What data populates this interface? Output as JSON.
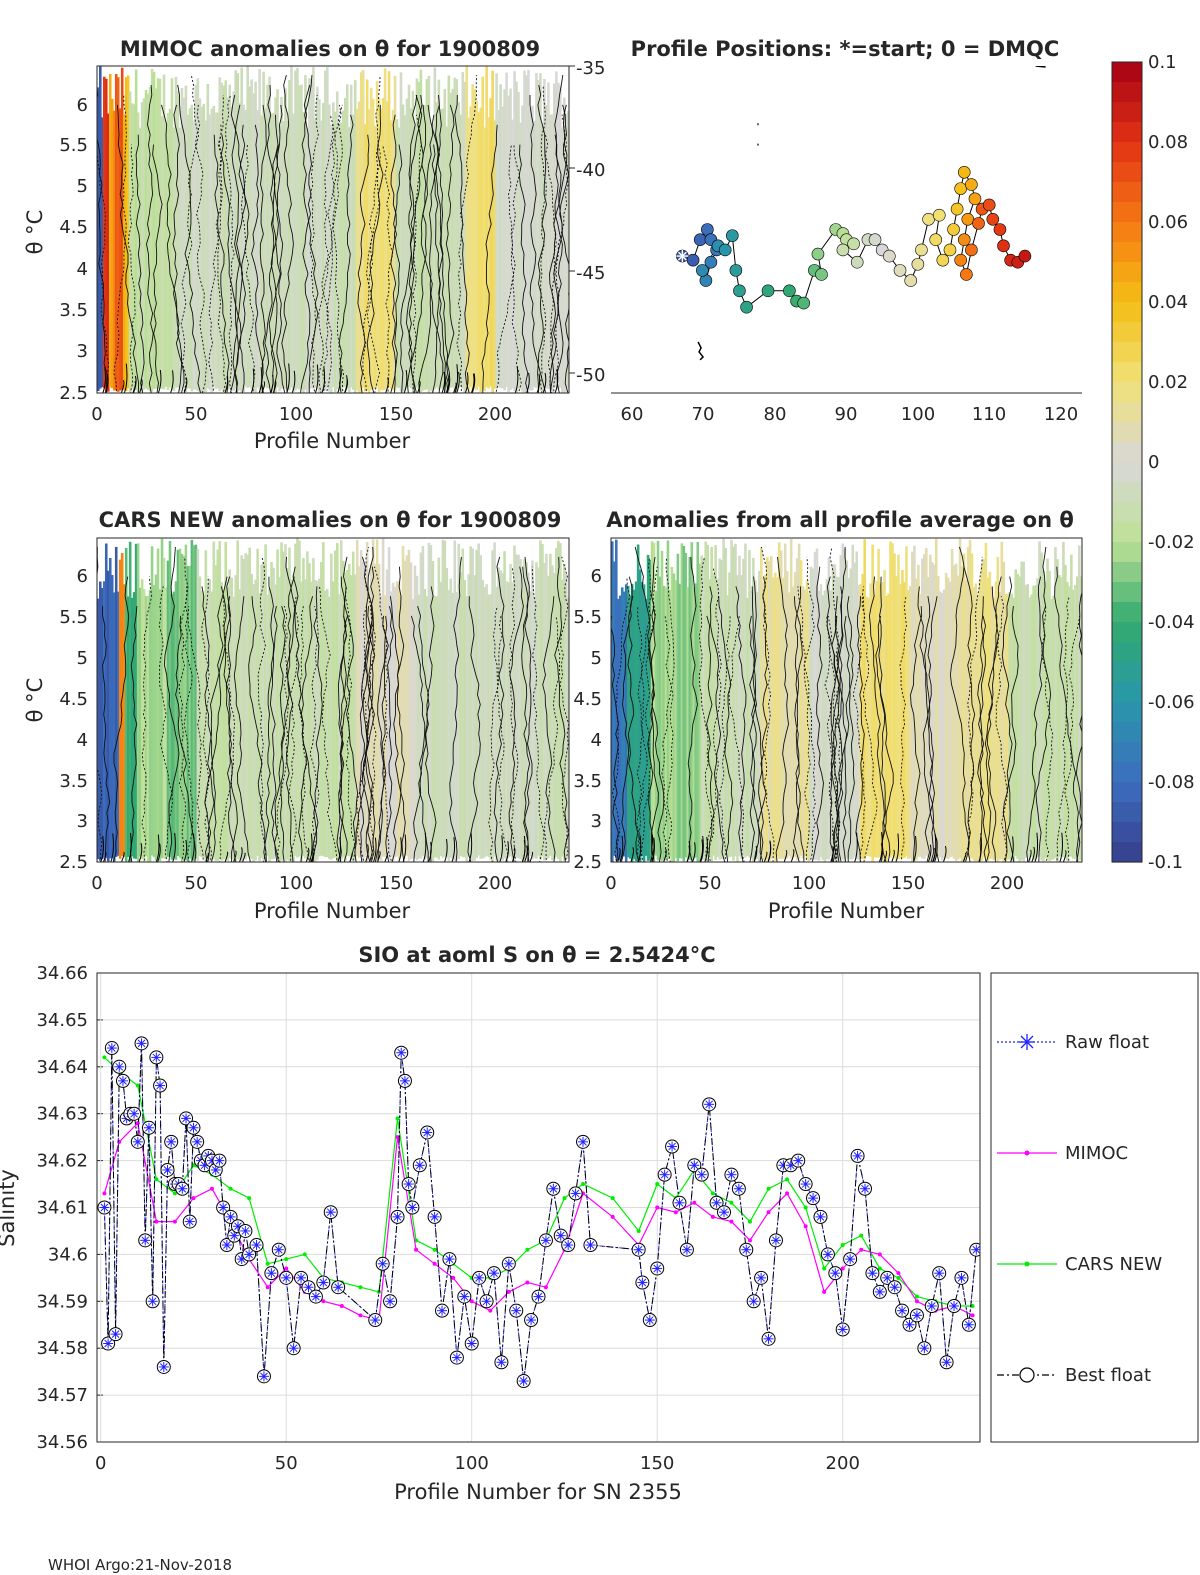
{
  "figure": {
    "footer": "WHOI Argo:21-Nov-2018"
  },
  "panels": {
    "mimoc": {
      "title": "MIMOC anomalies on θ  for 1900809",
      "xlabel": "Profile Number",
      "ylabel": "θ °C",
      "xticks": [
        "0",
        "50",
        "100",
        "150",
        "200"
      ],
      "yticks": [
        "2.5",
        "3",
        "3.5",
        "4",
        "4.5",
        "5",
        "5.5",
        "6"
      ]
    },
    "positions": {
      "title": "Profile Positions: *=start; 0 = DMQC",
      "xticks": [
        "60",
        "70",
        "80",
        "90",
        "100",
        "110",
        "120"
      ],
      "yticks": [
        "-35",
        "-40",
        "-45",
        "-50"
      ]
    },
    "cars": {
      "title": "CARS NEW anomalies on θ for 1900809",
      "xlabel": "Profile Number",
      "ylabel": "θ °C",
      "xticks": [
        "0",
        "50",
        "100",
        "150",
        "200"
      ],
      "yticks": [
        "2.5",
        "3",
        "3.5",
        "4",
        "4.5",
        "5",
        "5.5",
        "6"
      ]
    },
    "allavg": {
      "title": "Anomalies from all profile average on θ",
      "xlabel": "Profile Number",
      "xticks": [
        "0",
        "50",
        "100",
        "150",
        "200"
      ],
      "yticks": [
        "2.5",
        "3",
        "3.5",
        "4",
        "4.5",
        "5",
        "5.5",
        "6"
      ]
    },
    "colorbar": {
      "ticks": [
        "0.1",
        "0.08",
        "0.06",
        "0.04",
        "0.02",
        "0",
        "-0.02",
        "-0.04",
        "-0.06",
        "-0.08",
        "-0.1"
      ]
    }
  },
  "chart_data": [
    {
      "type": "heatmap",
      "id": "mimoc",
      "title": "MIMOC anomalies on θ  for 1900809",
      "xlabel": "Profile Number",
      "ylabel": "θ °C",
      "xlim": [
        0,
        237
      ],
      "ylim": [
        2.5,
        6.45
      ],
      "clim": [
        -0.1,
        0.1
      ],
      "anomaly_bands": [
        {
          "x": [
            0,
            3
          ],
          "value": -0.09
        },
        {
          "x": [
            3,
            6
          ],
          "value": 0.08
        },
        {
          "x": [
            6,
            9
          ],
          "value": 0.05
        },
        {
          "x": [
            9,
            13
          ],
          "value": 0.07
        },
        {
          "x": [
            13,
            16
          ],
          "value": 0.04
        },
        {
          "x": [
            16,
            40
          ],
          "value": -0.015
        },
        {
          "x": [
            40,
            130
          ],
          "value": -0.008
        },
        {
          "x": [
            130,
            150
          ],
          "value": 0.018
        },
        {
          "x": [
            150,
            185
          ],
          "value": -0.01
        },
        {
          "x": [
            185,
            200
          ],
          "value": 0.02
        },
        {
          "x": [
            200,
            237
          ],
          "value": -0.004
        }
      ]
    },
    {
      "type": "scatter",
      "id": "positions",
      "title": "Profile Positions: *=start; 0 = DMQC",
      "xlim": [
        57,
        123
      ],
      "ylim": [
        -51,
        -35
      ],
      "start": [
        67,
        -44.3
      ],
      "colorbar_ticks": [
        "0.1",
        "0.08",
        "0.06",
        "0.04",
        "0.02",
        "0",
        "-0.02",
        "-0.04",
        "-0.06",
        "-0.08",
        "-0.1"
      ],
      "track": [
        [
          67,
          -44.3
        ],
        [
          68.5,
          -44.5
        ],
        [
          69.5,
          -43.5
        ],
        [
          70.5,
          -43.0
        ],
        [
          71,
          -43.5
        ],
        [
          71.8,
          -44.0
        ],
        [
          71,
          -44.6
        ],
        [
          70.3,
          -45.5
        ],
        [
          69.8,
          -45.0
        ],
        [
          72,
          -43.8
        ],
        [
          73,
          -44.0
        ],
        [
          74,
          -43.3
        ],
        [
          74.5,
          -45.0
        ],
        [
          75,
          -46
        ],
        [
          76,
          -46.8
        ],
        [
          79,
          -46.0
        ],
        [
          82,
          -46.0
        ],
        [
          83,
          -46.5
        ],
        [
          84,
          -46.6
        ],
        [
          85.5,
          -45.0
        ],
        [
          86.5,
          -45.2
        ],
        [
          86,
          -44.2
        ],
        [
          88.5,
          -43.0
        ],
        [
          89.5,
          -43.2
        ],
        [
          90,
          -43.5
        ],
        [
          91,
          -43.7
        ],
        [
          89.5,
          -44.0
        ],
        [
          91.5,
          -44.6
        ],
        [
          93,
          -43.5
        ],
        [
          94,
          -43.5
        ],
        [
          95,
          -44
        ],
        [
          96,
          -44.3
        ],
        [
          97.5,
          -45.0
        ],
        [
          99,
          -45.5
        ],
        [
          100,
          -44.7
        ],
        [
          100.5,
          -44.0
        ],
        [
          101.5,
          -42.5
        ],
        [
          103,
          -42.3
        ],
        [
          102.5,
          -43.5
        ],
        [
          103.5,
          -44.5
        ],
        [
          104.5,
          -44.0
        ],
        [
          105,
          -43.0
        ],
        [
          105.5,
          -42.0
        ],
        [
          106,
          -41.0
        ],
        [
          106.5,
          -40.2
        ],
        [
          107.5,
          -40.8
        ],
        [
          108,
          -41.5
        ],
        [
          107,
          -42.5
        ],
        [
          106.5,
          -43.5
        ],
        [
          106,
          -44.5
        ],
        [
          106.8,
          -45.2
        ],
        [
          107.5,
          -44.0
        ],
        [
          108.5,
          -42.7
        ],
        [
          109,
          -42.0
        ],
        [
          110,
          -41.8
        ],
        [
          110.5,
          -42.5
        ],
        [
          111.5,
          -43.0
        ],
        [
          112,
          -43.8
        ],
        [
          113,
          -44.5
        ],
        [
          114,
          -44.6
        ],
        [
          115,
          -44.3
        ]
      ]
    },
    {
      "type": "heatmap",
      "id": "cars",
      "title": "CARS NEW anomalies on θ for 1900809",
      "xlabel": "Profile Number",
      "ylabel": "θ °C",
      "xlim": [
        0,
        237
      ],
      "ylim": [
        2.5,
        6.45
      ],
      "clim": [
        -0.1,
        0.1
      ],
      "anomaly_bands": [
        {
          "x": [
            0,
            11
          ],
          "value": -0.085
        },
        {
          "x": [
            11,
            14
          ],
          "value": 0.06
        },
        {
          "x": [
            14,
            20
          ],
          "value": -0.04
        },
        {
          "x": [
            20,
            35
          ],
          "value": -0.022
        },
        {
          "x": [
            35,
            50
          ],
          "value": -0.03
        },
        {
          "x": [
            50,
            130
          ],
          "value": -0.012
        },
        {
          "x": [
            130,
            160
          ],
          "value": 0.005
        },
        {
          "x": [
            160,
            237
          ],
          "value": -0.008
        }
      ]
    },
    {
      "type": "heatmap",
      "id": "allavg",
      "title": "Anomalies from all profile average on θ",
      "xlabel": "Profile Number",
      "xlim": [
        0,
        237
      ],
      "ylim": [
        2.5,
        6.45
      ],
      "clim": [
        -0.1,
        0.1
      ],
      "anomaly_bands": [
        {
          "x": [
            0,
            8
          ],
          "value": -0.075
        },
        {
          "x": [
            8,
            20
          ],
          "value": -0.05
        },
        {
          "x": [
            20,
            45
          ],
          "value": -0.025
        },
        {
          "x": [
            45,
            75
          ],
          "value": -0.01
        },
        {
          "x": [
            75,
            100
          ],
          "value": 0.012
        },
        {
          "x": [
            100,
            125
          ],
          "value": -0.004
        },
        {
          "x": [
            125,
            150
          ],
          "value": 0.02
        },
        {
          "x": [
            150,
            175
          ],
          "value": 0.006
        },
        {
          "x": [
            175,
            200
          ],
          "value": 0.015
        },
        {
          "x": [
            200,
            237
          ],
          "value": -0.012
        }
      ]
    },
    {
      "type": "line",
      "id": "salinity",
      "title": "SIO at aoml S on θ = 2.5424°C",
      "xlabel": "Profile Number for SN 2355",
      "ylabel": "Salinity",
      "xlim": [
        -1,
        237
      ],
      "ylim": [
        34.56,
        34.66
      ],
      "yticks": [
        "34.56",
        "34.57",
        "34.58",
        "34.59",
        "34.6",
        "34.61",
        "34.62",
        "34.63",
        "34.64",
        "34.65",
        "34.66"
      ],
      "xticks": [
        "0",
        "50",
        "100",
        "150",
        "200"
      ],
      "legend": [
        "Raw float",
        "MIMOC",
        "CARS NEW",
        "Best float"
      ],
      "legend_location": "outside right",
      "series": [
        {
          "name": "Best float",
          "x": [
            1,
            2,
            3,
            4,
            5,
            6,
            7,
            8,
            9,
            10,
            11,
            12,
            13,
            14,
            15,
            16,
            17,
            18,
            19,
            20,
            21,
            22,
            23,
            24,
            25,
            26,
            27,
            28,
            29,
            30,
            31,
            32,
            33,
            34,
            35,
            36,
            37,
            38,
            39,
            40,
            42,
            44,
            46,
            48,
            50,
            52,
            54,
            56,
            58,
            60,
            62,
            64,
            74,
            76,
            78,
            80,
            81,
            82,
            83,
            84,
            86,
            88,
            90,
            92,
            94,
            96,
            98,
            100,
            102,
            104,
            106,
            108,
            110,
            112,
            114,
            116,
            118,
            120,
            122,
            124,
            126,
            128,
            130,
            132,
            145,
            146,
            148,
            150,
            152,
            154,
            156,
            158,
            160,
            162,
            164,
            166,
            168,
            170,
            172,
            174,
            176,
            178,
            180,
            182,
            184,
            186,
            188,
            190,
            192,
            194,
            196,
            198,
            200,
            202,
            204,
            206,
            208,
            210,
            212,
            214,
            216,
            218,
            220,
            222,
            224,
            226,
            228,
            230,
            232,
            234,
            236
          ],
          "values": [
            34.61,
            34.581,
            34.644,
            34.583,
            34.64,
            34.637,
            34.629,
            34.63,
            34.63,
            34.624,
            34.645,
            34.603,
            34.627,
            34.59,
            34.642,
            34.636,
            34.576,
            34.618,
            34.624,
            34.615,
            34.615,
            34.614,
            34.629,
            34.607,
            34.627,
            34.624,
            34.62,
            34.619,
            34.621,
            34.62,
            34.618,
            34.62,
            34.61,
            34.602,
            34.608,
            34.604,
            34.606,
            34.599,
            34.605,
            34.6,
            34.602,
            34.574,
            34.596,
            34.601,
            34.595,
            34.58,
            34.595,
            34.593,
            34.591,
            34.594,
            34.609,
            34.593,
            34.586,
            34.598,
            34.59,
            34.608,
            34.643,
            34.637,
            34.615,
            34.61,
            34.619,
            34.626,
            34.608,
            34.588,
            34.599,
            34.578,
            34.591,
            34.581,
            34.595,
            34.59,
            34.596,
            34.577,
            34.598,
            34.588,
            34.573,
            34.586,
            34.591,
            34.603,
            34.614,
            34.604,
            34.602,
            34.613,
            34.624,
            34.602,
            34.601,
            34.594,
            34.586,
            34.597,
            34.617,
            34.623,
            34.611,
            34.601,
            34.619,
            34.617,
            34.632,
            34.611,
            34.609,
            34.617,
            34.614,
            34.601,
            34.59,
            34.595,
            34.582,
            34.603,
            34.619,
            34.619,
            34.62,
            34.615,
            34.612,
            34.608,
            34.6,
            34.596,
            34.584,
            34.599,
            34.621,
            34.614,
            34.596,
            34.592,
            34.595,
            34.593,
            34.588,
            34.585,
            34.587,
            34.58,
            34.589,
            34.596,
            34.577,
            34.589,
            34.595,
            34.585,
            34.601
          ]
        },
        {
          "name": "MIMOC",
          "x": [
            1,
            5,
            10,
            15,
            20,
            25,
            30,
            35,
            40,
            45,
            50,
            55,
            60,
            65,
            70,
            75,
            80,
            85,
            90,
            95,
            100,
            105,
            110,
            115,
            120,
            125,
            130,
            138,
            145,
            150,
            155,
            160,
            165,
            170,
            175,
            180,
            185,
            190,
            195,
            200,
            205,
            210,
            215,
            220,
            225,
            230,
            235
          ],
          "values": [
            34.613,
            34.624,
            34.628,
            34.607,
            34.607,
            34.612,
            34.614,
            34.607,
            34.599,
            34.593,
            34.597,
            34.592,
            34.59,
            34.589,
            34.587,
            34.586,
            34.625,
            34.601,
            34.598,
            34.595,
            34.59,
            34.588,
            34.592,
            34.594,
            34.593,
            34.601,
            34.613,
            34.608,
            34.602,
            34.61,
            34.609,
            34.611,
            34.608,
            34.607,
            34.603,
            34.609,
            34.613,
            34.606,
            34.592,
            34.597,
            34.601,
            34.6,
            34.596,
            34.59,
            34.588,
            34.589,
            34.587
          ]
        },
        {
          "name": "CARS NEW",
          "x": [
            1,
            5,
            10,
            15,
            20,
            25,
            30,
            35,
            40,
            45,
            50,
            55,
            60,
            65,
            70,
            75,
            80,
            85,
            90,
            95,
            100,
            105,
            110,
            115,
            120,
            125,
            130,
            138,
            145,
            150,
            155,
            160,
            165,
            170,
            175,
            180,
            185,
            190,
            195,
            200,
            205,
            210,
            215,
            220,
            225,
            230,
            235
          ],
          "values": [
            34.642,
            34.639,
            34.636,
            34.616,
            34.613,
            34.619,
            34.617,
            34.614,
            34.612,
            34.598,
            34.599,
            34.6,
            34.595,
            34.594,
            34.593,
            34.592,
            34.629,
            34.603,
            34.601,
            34.598,
            34.595,
            34.595,
            34.597,
            34.601,
            34.603,
            34.612,
            34.615,
            34.612,
            34.605,
            34.615,
            34.612,
            34.618,
            34.613,
            34.611,
            34.607,
            34.614,
            34.616,
            34.61,
            34.597,
            34.602,
            34.604,
            34.597,
            34.595,
            34.591,
            34.59,
            34.589,
            34.589
          ]
        },
        {
          "name": "Raw float",
          "same_as": "Best float"
        }
      ]
    }
  ]
}
